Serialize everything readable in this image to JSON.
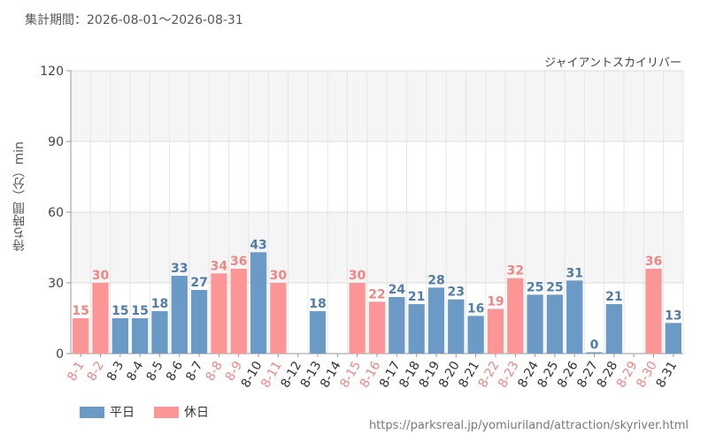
{
  "header": {
    "period": "集計期間：2026-08-01～2026-08-31",
    "attraction": "ジャイアントスカイリバー"
  },
  "footer": {
    "source": "https://parksreal.jp/yomiuriland/attraction/skyriver.html"
  },
  "legend": {
    "weekday_label": "平日",
    "holiday_label": "休日"
  },
  "colors": {
    "weekday": "#6a9ac5",
    "holiday": "#fc9696",
    "weekday_label": "#4f7ca8",
    "holiday_label": "#f38484"
  },
  "chart_data": {
    "type": "bar",
    "ylabel": "待ち時間（分）min",
    "ylim": [
      0,
      120
    ],
    "yticks": [
      0,
      30,
      60,
      90,
      120
    ],
    "grid": true,
    "legend_position": "bottom-left",
    "categories": [
      "8-1",
      "8-2",
      "8-3",
      "8-4",
      "8-5",
      "8-6",
      "8-7",
      "8-8",
      "8-9",
      "8-10",
      "8-11",
      "8-12",
      "8-13",
      "8-14",
      "8-15",
      "8-16",
      "8-17",
      "8-18",
      "8-19",
      "8-20",
      "8-21",
      "8-22",
      "8-23",
      "8-24",
      "8-25",
      "8-26",
      "8-27",
      "8-28",
      "8-29",
      "8-30",
      "8-31"
    ],
    "day_types": [
      "holiday",
      "holiday",
      "weekday",
      "weekday",
      "weekday",
      "weekday",
      "weekday",
      "holiday",
      "holiday",
      "weekday",
      "holiday",
      "weekday",
      "weekday",
      "weekday",
      "holiday",
      "holiday",
      "weekday",
      "weekday",
      "weekday",
      "weekday",
      "weekday",
      "holiday",
      "holiday",
      "weekday",
      "weekday",
      "weekday",
      "weekday",
      "weekday",
      "holiday",
      "holiday",
      "weekday"
    ],
    "values": [
      15,
      30,
      15,
      15,
      18,
      33,
      27,
      34,
      36,
      43,
      30,
      null,
      18,
      null,
      30,
      22,
      24,
      21,
      28,
      23,
      16,
      19,
      32,
      25,
      25,
      31,
      0,
      21,
      null,
      36,
      13
    ]
  }
}
